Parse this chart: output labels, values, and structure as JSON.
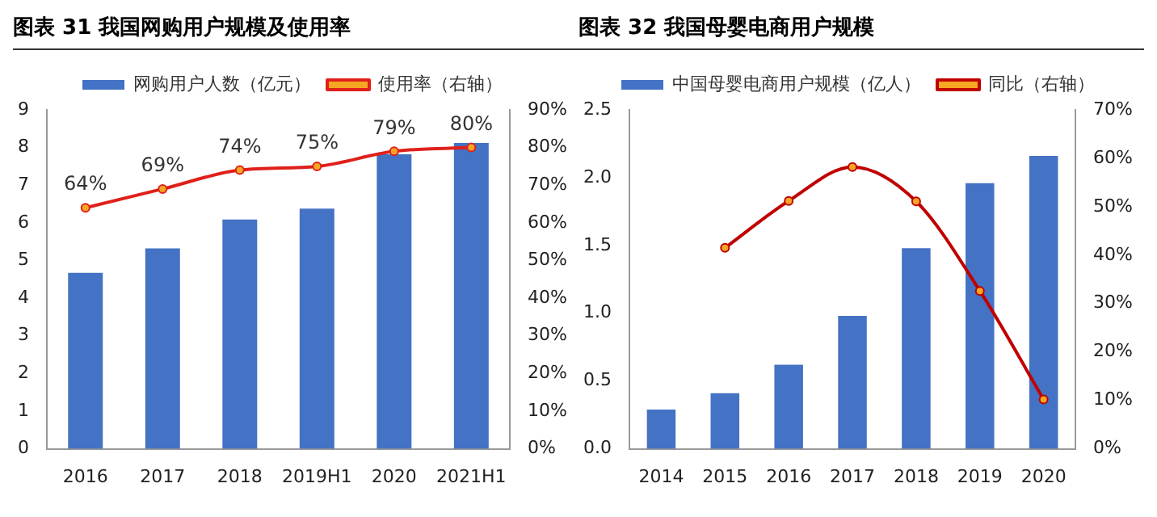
{
  "chart_data": [
    {
      "type": "bar",
      "title": "图表 31  我国网购用户规模及使用率",
      "categories": [
        "2016",
        "2017",
        "2018",
        "2019H1",
        "2020",
        "2021H1"
      ],
      "series": [
        {
          "name": "网购用户人数（亿元）",
          "color": "#4472c4",
          "values": [
            4.67,
            5.32,
            6.09,
            6.38,
            7.82,
            8.12
          ]
        },
        {
          "name": "使用率（右轴）",
          "type": "line",
          "axis": "y2",
          "color": "#e0201b",
          "values": [
            64,
            69,
            74,
            75,
            79,
            80
          ],
          "value_labels": [
            "64%",
            "69%",
            "74%",
            "75%",
            "79%",
            "80%"
          ]
        }
      ],
      "ylim": [
        0,
        9
      ],
      "yticks": [
        0,
        1,
        2,
        3,
        4,
        5,
        6,
        7,
        8,
        9
      ],
      "y2lim": [
        0,
        90
      ],
      "y2ticks": [
        {
          "value": 0,
          "label": "0%"
        },
        {
          "value": 10,
          "label": "10%"
        },
        {
          "value": 20,
          "label": "20%"
        },
        {
          "value": 30,
          "label": "30%"
        },
        {
          "value": 40,
          "label": "40%"
        },
        {
          "value": 50,
          "label": "50%"
        },
        {
          "value": 60,
          "label": "60%"
        },
        {
          "value": 70,
          "label": "70%"
        },
        {
          "value": 80,
          "label": "80%"
        },
        {
          "value": 90,
          "label": "90%"
        }
      ],
      "legend": "top",
      "marker": "circle",
      "grid": false
    },
    {
      "type": "bar",
      "title": "图表 32  我国母婴电商用户规模",
      "categories": [
        "2014",
        "2015",
        "2016",
        "2017",
        "2018",
        "2019",
        "2020"
      ],
      "series": [
        {
          "name": "中国母婴电商用户规模（亿人）",
          "color": "#4472c4",
          "values": [
            0.29,
            0.41,
            0.62,
            0.98,
            1.48,
            1.96,
            2.16
          ]
        },
        {
          "name": "同比（右轴）",
          "type": "line",
          "axis": "y2",
          "color": "#c00000",
          "values": [
            null,
            41.5,
            51.2,
            58.2,
            51.1,
            32.6,
            10.2
          ]
        }
      ],
      "ylim": [
        0,
        2.5
      ],
      "yticks": [
        {
          "value": 0,
          "label": "0.0"
        },
        {
          "value": 0.5,
          "label": "0.5"
        },
        {
          "value": 1,
          "label": "1.0"
        },
        {
          "value": 1.5,
          "label": "1.5"
        },
        {
          "value": 2,
          "label": "2.0"
        },
        {
          "value": 2.5,
          "label": "2.5"
        }
      ],
      "y2lim": [
        0,
        70
      ],
      "y2ticks": [
        {
          "value": 0,
          "label": "0%"
        },
        {
          "value": 10,
          "label": "10%"
        },
        {
          "value": 20,
          "label": "20%"
        },
        {
          "value": 30,
          "label": "30%"
        },
        {
          "value": 40,
          "label": "40%"
        },
        {
          "value": 50,
          "label": "50%"
        },
        {
          "value": 60,
          "label": "60%"
        },
        {
          "value": 70,
          "label": "70%"
        }
      ],
      "legend": "top",
      "marker": "circle",
      "grid": false
    }
  ]
}
